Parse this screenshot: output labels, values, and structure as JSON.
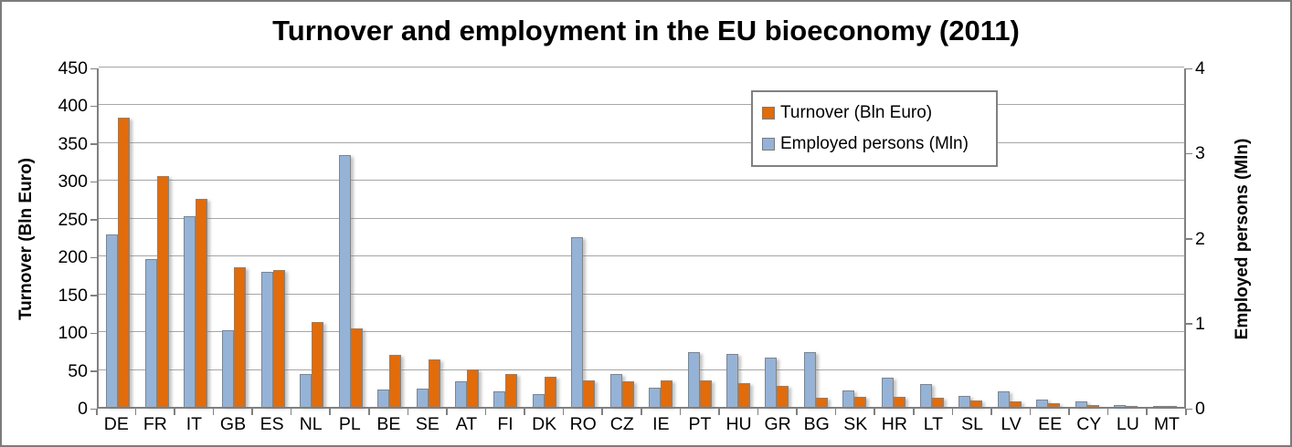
{
  "chart_data": {
    "type": "bar",
    "title": "Turnover and employment in the EU bioeconomy (2011)",
    "categories": [
      "DE",
      "FR",
      "IT",
      "GB",
      "ES",
      "NL",
      "PL",
      "BE",
      "SE",
      "AT",
      "FI",
      "DK",
      "RO",
      "CZ",
      "IE",
      "PT",
      "HU",
      "GR",
      "BG",
      "SK",
      "HR",
      "LT",
      "SL",
      "LV",
      "EE",
      "CY",
      "LU",
      "MT"
    ],
    "series": [
      {
        "name": "Turnover (Bln Euro)",
        "color": "#E26B0A",
        "axis": "left",
        "position_in_group": 2,
        "values": [
          383,
          305,
          275,
          185,
          181,
          112,
          104,
          69,
          63,
          49,
          43,
          40,
          35,
          34,
          35,
          35,
          31,
          28,
          12,
          13,
          13,
          12,
          9,
          7,
          5,
          3,
          1,
          1
        ]
      },
      {
        "name": "Employed persons (Mln)",
        "color": "#95B3D7",
        "axis": "right",
        "position_in_group": 1,
        "values": [
          2.03,
          1.74,
          2.24,
          0.9,
          1.59,
          0.39,
          2.96,
          0.2,
          0.21,
          0.3,
          0.18,
          0.15,
          1.99,
          0.39,
          0.23,
          0.64,
          0.62,
          0.58,
          0.64,
          0.19,
          0.34,
          0.27,
          0.13,
          0.18,
          0.09,
          0.06,
          0.02,
          0.01
        ]
      }
    ],
    "left_axis": {
      "label": "Turnover (Bln Euro)",
      "min": 0,
      "max": 450,
      "ticks": [
        450,
        400,
        350,
        300,
        250,
        200,
        150,
        100,
        50,
        0
      ]
    },
    "right_axis": {
      "label": "Employed persons (Mln)",
      "min": 0,
      "max": 4,
      "ticks": [
        4,
        3,
        2,
        1,
        0
      ]
    },
    "legend": {
      "position": "top-right-inside"
    },
    "grid": true,
    "colors": {
      "gridline": "#A6A6A6",
      "axis_line": "#808080",
      "bar_border": "#848484",
      "background": "#FFFFFF",
      "frame_border": "#7C7C7C"
    }
  }
}
